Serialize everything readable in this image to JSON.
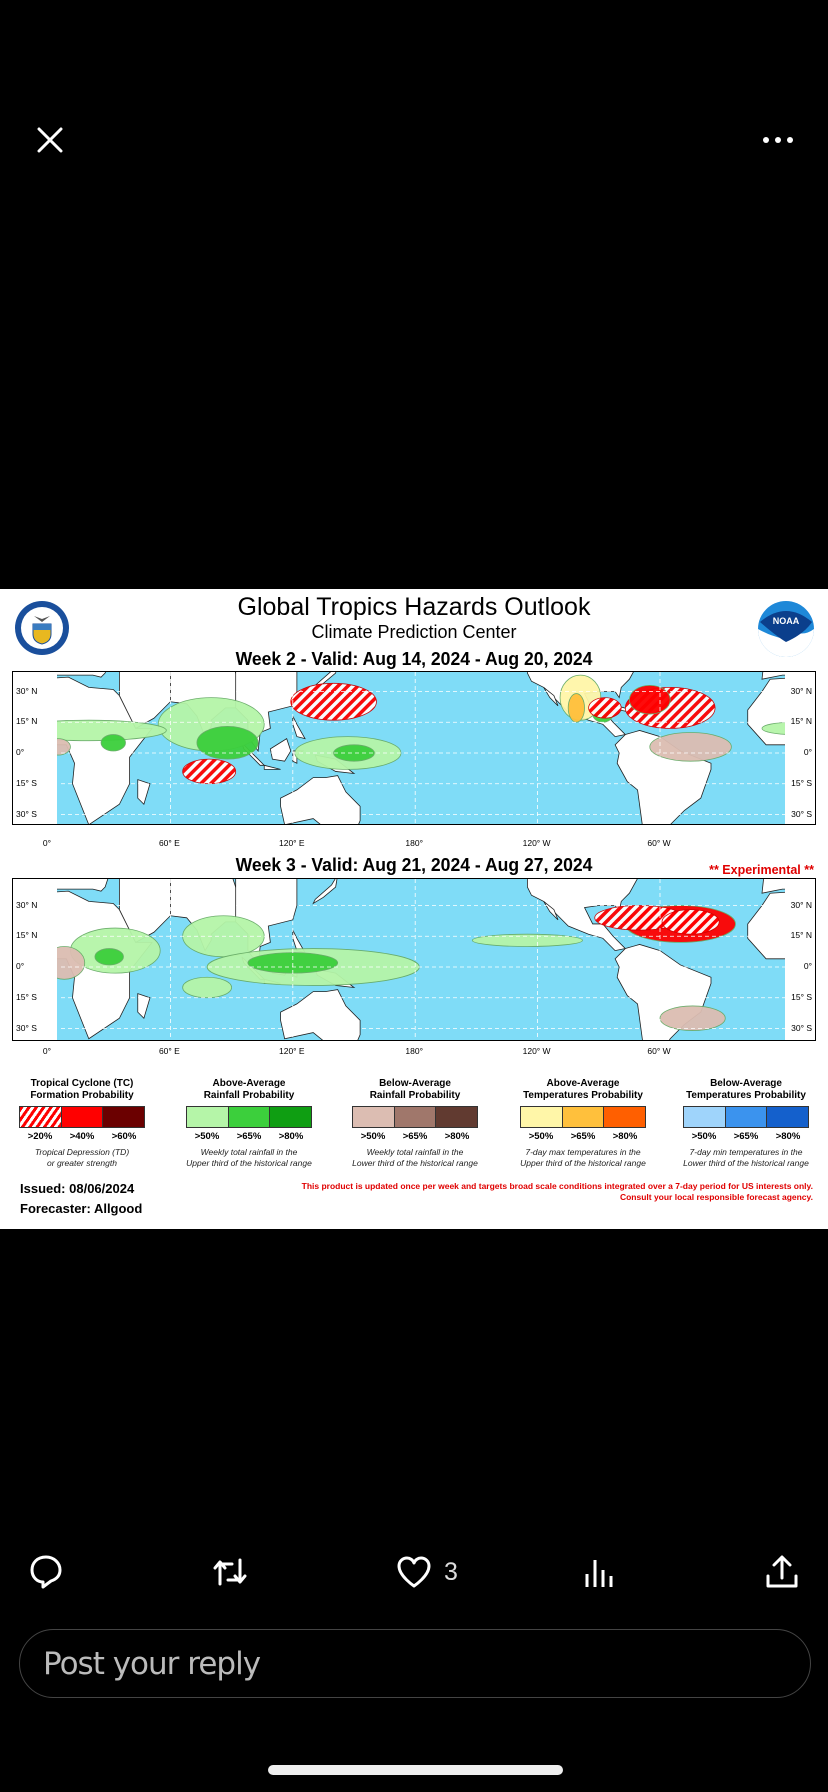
{
  "top": {
    "close_icon": "close-icon",
    "more_icon": "more-icon"
  },
  "image": {
    "title": "Global Tropics Hazards Outlook",
    "subtitle": "Climate Prediction Center",
    "week2": "Week 2 - Valid: Aug 14, 2024 - Aug 20, 2024",
    "week3": "Week 3 - Valid: Aug 21, 2024 - Aug 27, 2024",
    "experimental": "** Experimental **",
    "noaa_logo": "NOAA",
    "lat_labels": [
      "30° N",
      "15° N",
      "0°",
      "15° S",
      "30° S"
    ],
    "lon_labels": [
      "0°",
      "60° E",
      "120° E",
      "180°",
      "120° W",
      "60° W"
    ],
    "legend": [
      {
        "title": "Tropical Cyclone (TC)",
        "title2": "Formation Probability",
        "levels": [
          ">20%",
          ">40%",
          ">60%"
        ],
        "colors": [
          "hatch",
          "#ff0000",
          "#6b0000"
        ],
        "desc": "Tropical Depression (TD)",
        "desc2": "or greater strength"
      },
      {
        "title": "Above-Average",
        "title2": "Rainfall Probability",
        "levels": [
          ">50%",
          ">65%",
          ">80%"
        ],
        "colors": [
          "#b5f5a8",
          "#3ccf3c",
          "#0f9e12"
        ],
        "desc": "Weekly total rainfall in the",
        "desc2": "Upper third of the historical range"
      },
      {
        "title": "Below-Average",
        "title2": "Rainfall Probability",
        "levels": [
          ">50%",
          ">65%",
          ">80%"
        ],
        "colors": [
          "#dcbdb2",
          "#a0776b",
          "#613a30"
        ],
        "desc": "Weekly total rainfall in the",
        "desc2": "Lower third of the historical range"
      },
      {
        "title": "Above-Average",
        "title2": "Temperatures Probability",
        "levels": [
          ">50%",
          ">65%",
          ">80%"
        ],
        "colors": [
          "#fff6a8",
          "#ffc03c",
          "#ff5f00"
        ],
        "desc": "7-day max temperatures in the",
        "desc2": "Upper third of the historical range"
      },
      {
        "title": "Below-Average",
        "title2": "Temperatures Probability",
        "levels": [
          ">50%",
          ">65%",
          ">80%"
        ],
        "colors": [
          "#9fd4fb",
          "#3b93ee",
          "#1460cc"
        ],
        "desc": "7-day min temperatures in the",
        "desc2": "Lower third of the historical range"
      }
    ],
    "issued": "Issued: 08/06/2024",
    "forecaster": "Forecaster: Allgood",
    "disclaimer": "This product is updated once per week and targets broad scale conditions integrated over a 7-day period for US interests only.",
    "disclaimer2": "Consult your local responsible forecast agency."
  },
  "actions": {
    "like_count": "3"
  },
  "reply": {
    "placeholder": "Post your reply"
  }
}
